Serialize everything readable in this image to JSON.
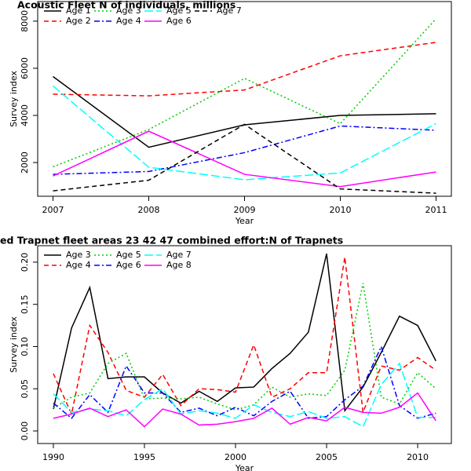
{
  "chart_data": [
    {
      "type": "line",
      "title": "Acoustic Fleet  N of individuals, millions",
      "x_label": "Year",
      "y_label": "Survey index",
      "x": [
        2007,
        2008,
        2009,
        2010,
        2011
      ],
      "xlim": [
        2006.84,
        2011.16
      ],
      "xticks": [
        2007,
        2008,
        2009,
        2010,
        2011
      ],
      "ylim": [
        570,
        8830
      ],
      "yticks": [
        2000,
        4000,
        6000,
        8000
      ],
      "legend": "top-left",
      "series": [
        {
          "name": "Age 1",
          "color": "#000000",
          "dash": "solid",
          "values": [
            5650,
            2650,
            3600,
            4000,
            4070
          ]
        },
        {
          "name": "Age 2",
          "color": "#ff0000",
          "dash": "dashed",
          "values": [
            4900,
            4830,
            5080,
            6530,
            7100
          ]
        },
        {
          "name": "Age 3",
          "color": "#00cd00",
          "dash": "dotted",
          "values": [
            1820,
            3400,
            5570,
            3650,
            8100
          ]
        },
        {
          "name": "Age 4",
          "color": "#0000ff",
          "dash": "dashdot",
          "values": [
            1500,
            1620,
            2420,
            3550,
            3370
          ]
        },
        {
          "name": "Age 5",
          "color": "#00ffff",
          "dash": "longdash",
          "values": [
            5250,
            1800,
            1270,
            1560,
            3650
          ]
        },
        {
          "name": "Age 6",
          "color": "#ff00ff",
          "dash": "solid",
          "values": [
            1430,
            3330,
            1500,
            980,
            1600
          ]
        },
        {
          "name": "Age 7",
          "color": "#000000",
          "dash": "dashed",
          "values": [
            800,
            1250,
            3620,
            880,
            700
          ]
        }
      ]
    },
    {
      "type": "line",
      "title": "ed Trapnet fleet areas 23 42 47 combined  effort:N of Trapnets",
      "x_label": "Year",
      "y_label": "Survey index",
      "x": [
        1990,
        1991,
        1992,
        1993,
        1994,
        1995,
        1996,
        1997,
        1998,
        1999,
        2000,
        2001,
        2002,
        2003,
        2004,
        2005,
        2006,
        2007,
        2008,
        2009,
        2010,
        2011
      ],
      "xlim": [
        1989.14,
        2011.85
      ],
      "xticks": [
        1990,
        1995,
        2000,
        2005,
        2010
      ],
      "ylim": [
        -0.0149,
        0.2195
      ],
      "yticks": [
        {
          "value": 0,
          "label": "0.00"
        },
        0.05,
        {
          "value": 0.1,
          "label": "0.10"
        },
        0.15,
        {
          "value": 0.2,
          "label": "0.20"
        }
      ],
      "legend": "top-left",
      "series": [
        {
          "name": "Age 3",
          "color": "#000000",
          "dash": "solid",
          "values": [
            0.026,
            0.122,
            0.17,
            0.062,
            0.064,
            0.064,
            0.045,
            0.033,
            0.047,
            0.035,
            0.051,
            0.052,
            0.074,
            0.092,
            0.117,
            0.21,
            0.024,
            0.052,
            0.093,
            0.136,
            0.125,
            0.083
          ]
        },
        {
          "name": "Age 4",
          "color": "#ff0000",
          "dash": "dashed",
          "values": [
            0.068,
            0.02,
            0.125,
            0.093,
            0.048,
            0.04,
            0.067,
            0.03,
            0.05,
            0.049,
            0.046,
            0.102,
            0.04,
            0.05,
            0.069,
            0.069,
            0.206,
            0.022,
            0.077,
            0.072,
            0.087,
            0.072
          ]
        },
        {
          "name": "Age 5",
          "color": "#00cd00",
          "dash": "dotted",
          "values": [
            0.027,
            0.04,
            0.045,
            0.08,
            0.092,
            0.038,
            0.039,
            0.038,
            0.04,
            0.032,
            0.025,
            0.031,
            0.052,
            0.04,
            0.044,
            0.042,
            0.072,
            0.175,
            0.04,
            0.032,
            0.069,
            0.05
          ]
        },
        {
          "name": "Age 6",
          "color": "#0000ff",
          "dash": "dashdot",
          "values": [
            0.033,
            0.015,
            0.043,
            0.022,
            0.077,
            0.045,
            0.045,
            0.022,
            0.027,
            0.018,
            0.028,
            0.018,
            0.035,
            0.047,
            0.015,
            0.017,
            0.037,
            0.053,
            0.1,
            0.03,
            0.015,
            0.021
          ]
        },
        {
          "name": "Age 7",
          "color": "#00ffff",
          "dash": "longdash",
          "values": [
            0.044,
            0.022,
            0.026,
            0.024,
            0.018,
            0.037,
            0.05,
            0.02,
            0.024,
            0.021,
            0.015,
            0.031,
            0.022,
            0.017,
            0.023,
            0.015,
            0.017,
            0.005,
            0.055,
            0.08,
            0.016,
            0.016
          ]
        },
        {
          "name": "Age 8",
          "color": "#ff00ff",
          "dash": "solid",
          "values": [
            0.015,
            0.02,
            0.027,
            0.017,
            0.025,
            0.005,
            0.026,
            0.02,
            0.007,
            0.008,
            0.011,
            0.015,
            0.027,
            0.008,
            0.016,
            0.012,
            0.028,
            0.022,
            0.021,
            0.028,
            0.045,
            0.012
          ]
        }
      ]
    }
  ]
}
